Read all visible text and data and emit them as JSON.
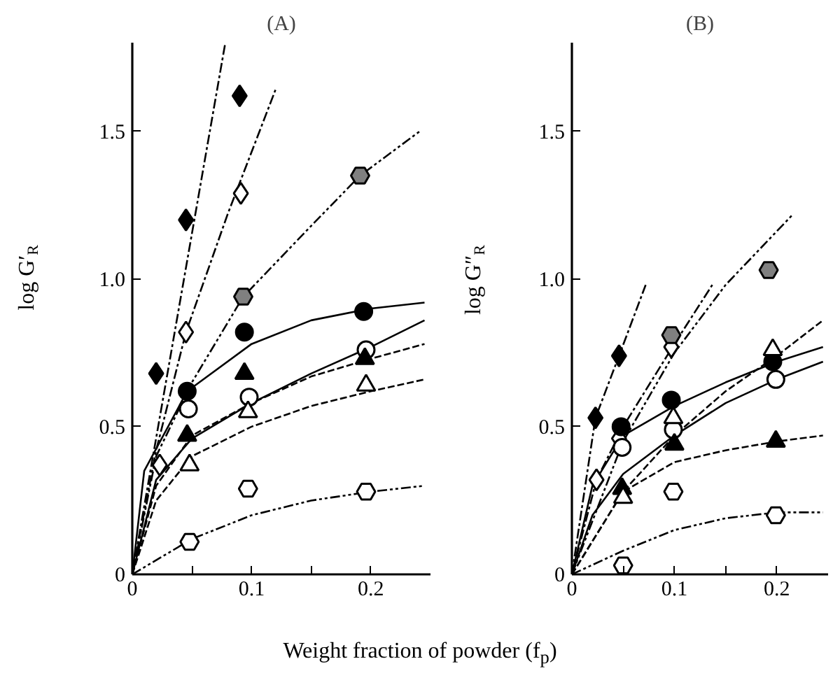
{
  "chart_data": [
    {
      "type": "scatter",
      "title": "(A)",
      "xlabel": "Weight fraction of powder (f$_{p}$)",
      "ylabel": "log G′$_{R}$",
      "xlim": [
        0,
        0.25
      ],
      "ylim": [
        0,
        1.8
      ],
      "xticks": [
        0,
        {
          "value": 0.05,
          "label": null
        },
        {
          "value": 0.1,
          "label": "0.1"
        },
        {
          "value": 0.15,
          "label": null
        },
        {
          "value": 0.2,
          "label": "0.2"
        }
      ],
      "yticks": [
        0,
        {
          "value": 0.5,
          "label": "0.5"
        },
        {
          "value": 1,
          "label": "1.0"
        },
        {
          "value": 1.5,
          "label": "1.5"
        }
      ],
      "grid": false,
      "series": [
        {
          "marker": "diamond",
          "color": "#000000",
          "x": [
            0.02,
            0.045,
            0.09
          ],
          "values": [
            0.68,
            1.2,
            1.62
          ]
        },
        {
          "marker": "diamond",
          "color": "#ffffff",
          "x": [
            0.023,
            0.045,
            0.091
          ],
          "values": [
            0.37,
            0.82,
            1.29
          ]
        },
        {
          "color": "#808080",
          "x": [
            0.093,
            0.191
          ],
          "values": [
            0.94,
            1.35
          ]
        },
        {
          "marker": "circle",
          "color": "#000000",
          "x": [
            0.046,
            0.094,
            0.194
          ],
          "values": [
            0.62,
            0.82,
            0.89
          ]
        },
        {
          "marker": "circle",
          "color": "#ffffff",
          "x": [
            0.047,
            0.098,
            0.196
          ],
          "values": [
            0.56,
            0.6,
            0.76
          ]
        },
        {
          "marker": "triangle",
          "color": "#000000",
          "x": [
            0.046,
            0.094,
            0.195
          ],
          "values": [
            0.47,
            0.68,
            0.73
          ]
        },
        {
          "marker": "triangle",
          "color": "#ffffff",
          "x": [
            0.048,
            0.097,
            0.196
          ],
          "values": [
            0.37,
            0.55,
            0.64
          ]
        },
        {
          "color": "#ffffff",
          "x": [
            0.048,
            0.097,
            0.196
          ],
          "values": [
            0.11,
            0.29,
            0.28
          ]
        },
        {
          "type": "line",
          "line_style": "dashdot",
          "color": "#000000",
          "x": [
            0,
            0.078
          ],
          "values": [
            0,
            1.8
          ]
        },
        {
          "type": "line",
          "line_style": "dashdot",
          "color": "#000000",
          "x": [
            0,
            0.02,
            0.045,
            0.08,
            0.12
          ],
          "values": [
            0,
            0.42,
            0.82,
            1.22,
            1.64
          ]
        },
        {
          "type": "line",
          "line_style": "dashdotdot",
          "color": "#000000",
          "x": [
            0,
            0.02,
            0.05,
            0.093,
            0.15,
            0.191,
            0.241
          ],
          "values": [
            0,
            0.4,
            0.65,
            0.94,
            1.18,
            1.35,
            1.5
          ]
        },
        {
          "type": "line",
          "line_style": "solid",
          "color": "#000000",
          "x": [
            0,
            0.01,
            0.046,
            0.1,
            0.15,
            0.2,
            0.245
          ],
          "values": [
            0,
            0.35,
            0.62,
            0.78,
            0.86,
            0.9,
            0.92
          ]
        },
        {
          "type": "line",
          "line_style": "solid",
          "color": "#000000",
          "x": [
            0,
            0.02,
            0.05,
            0.1,
            0.15,
            0.2,
            0.245
          ],
          "values": [
            0,
            0.32,
            0.46,
            0.58,
            0.68,
            0.77,
            0.86
          ]
        },
        {
          "type": "line",
          "line_style": "dashed",
          "color": "#000000",
          "x": [
            0,
            0.02,
            0.05,
            0.1,
            0.15,
            0.2,
            0.245
          ],
          "values": [
            0,
            0.3,
            0.47,
            0.58,
            0.67,
            0.73,
            0.78
          ]
        },
        {
          "type": "line",
          "line_style": "dashed",
          "color": "#000000",
          "x": [
            0,
            0.02,
            0.05,
            0.1,
            0.15,
            0.2,
            0.245
          ],
          "values": [
            0,
            0.25,
            0.4,
            0.5,
            0.57,
            0.62,
            0.66
          ]
        },
        {
          "type": "line",
          "line_style": "dashdotdot",
          "color": "#000000",
          "x": [
            0,
            0.05,
            0.1,
            0.15,
            0.2,
            0.245
          ],
          "values": [
            0,
            0.12,
            0.2,
            0.25,
            0.28,
            0.3
          ]
        }
      ]
    },
    {
      "type": "scatter",
      "title": "(B)",
      "ylabel": "log G″$_{R}$",
      "xlim": [
        0,
        0.25
      ],
      "ylim": [
        0,
        1.8
      ],
      "xticks": [
        0,
        {
          "value": 0.05,
          "label": null
        },
        {
          "value": 0.1,
          "label": "0.1"
        },
        {
          "value": 0.15,
          "label": null
        },
        {
          "value": 0.2,
          "label": "0.2"
        }
      ],
      "yticks": [
        0,
        {
          "value": 0.5,
          "label": "0.5"
        },
        {
          "value": 1,
          "label": "1.0"
        },
        {
          "value": 1.5,
          "label": "1.5"
        }
      ],
      "grid": false,
      "series": [
        {
          "marker": "diamond",
          "color": "#000000",
          "x": [
            0.023,
            0.046
          ],
          "values": [
            0.53,
            0.74
          ]
        },
        {
          "marker": "diamond",
          "color": "#ffffff",
          "x": [
            0.024,
            0.046,
            0.097
          ],
          "values": [
            0.32,
            0.46,
            0.77
          ]
        },
        {
          "color": "#808080",
          "x": [
            0.097,
            0.192
          ],
          "values": [
            0.81,
            1.03
          ]
        },
        {
          "marker": "circle",
          "color": "#000000",
          "x": [
            0.048,
            0.097,
            0.196
          ],
          "values": [
            0.5,
            0.59,
            0.72
          ]
        },
        {
          "marker": "circle",
          "color": "#ffffff",
          "x": [
            0.049,
            0.099,
            0.199
          ],
          "values": [
            0.43,
            0.49,
            0.66
          ]
        },
        {
          "marker": "triangle",
          "color": "#000000",
          "x": [
            0.049,
            0.1,
            0.199
          ],
          "values": [
            0.29,
            0.44,
            0.45
          ]
        },
        {
          "marker": "triangle",
          "color": "#ffffff",
          "x": [
            0.05,
            0.099,
            0.196
          ],
          "values": [
            0.26,
            0.53,
            0.76
          ]
        },
        {
          "color": "#ffffff",
          "x": [
            0.05,
            0.099,
            0.199
          ],
          "values": [
            0.03,
            0.28,
            0.2
          ]
        },
        {
          "type": "line",
          "line_style": "dashdot",
          "color": "#000000",
          "x": [
            0,
            0.023,
            0.046,
            0.072
          ],
          "values": [
            0,
            0.53,
            0.74,
            0.98
          ]
        },
        {
          "type": "line",
          "line_style": "dashdot",
          "color": "#000000",
          "x": [
            0,
            0.024,
            0.05,
            0.1,
            0.137
          ],
          "values": [
            0,
            0.32,
            0.5,
            0.78,
            0.98
          ]
        },
        {
          "type": "line",
          "line_style": "dashdotdot",
          "color": "#000000",
          "x": [
            0,
            0.05,
            0.1,
            0.15,
            0.216
          ],
          "values": [
            0,
            0.45,
            0.75,
            0.98,
            1.22
          ]
        },
        {
          "type": "line",
          "line_style": "solid",
          "color": "#000000",
          "x": [
            0,
            0.02,
            0.05,
            0.1,
            0.15,
            0.2,
            0.245
          ],
          "values": [
            0,
            0.3,
            0.47,
            0.57,
            0.65,
            0.72,
            0.77
          ]
        },
        {
          "type": "line",
          "line_style": "solid",
          "color": "#000000",
          "x": [
            0,
            0.02,
            0.05,
            0.1,
            0.15,
            0.2,
            0.245
          ],
          "values": [
            0,
            0.2,
            0.34,
            0.47,
            0.58,
            0.66,
            0.72
          ]
        },
        {
          "type": "line",
          "line_style": "dashed",
          "color": "#000000",
          "x": [
            0,
            0.05,
            0.1,
            0.15,
            0.2,
            0.245
          ],
          "values": [
            0,
            0.28,
            0.47,
            0.62,
            0.74,
            0.86
          ]
        },
        {
          "type": "line",
          "line_style": "dashed",
          "color": "#000000",
          "x": [
            0,
            0.05,
            0.1,
            0.15,
            0.2,
            0.245
          ],
          "values": [
            0,
            0.28,
            0.38,
            0.42,
            0.45,
            0.47
          ]
        },
        {
          "type": "line",
          "line_style": "dashdotdot",
          "color": "#000000",
          "x": [
            0,
            0.05,
            0.1,
            0.15,
            0.2,
            0.245
          ],
          "values": [
            0,
            0.08,
            0.15,
            0.19,
            0.21,
            0.21
          ]
        }
      ]
    }
  ]
}
